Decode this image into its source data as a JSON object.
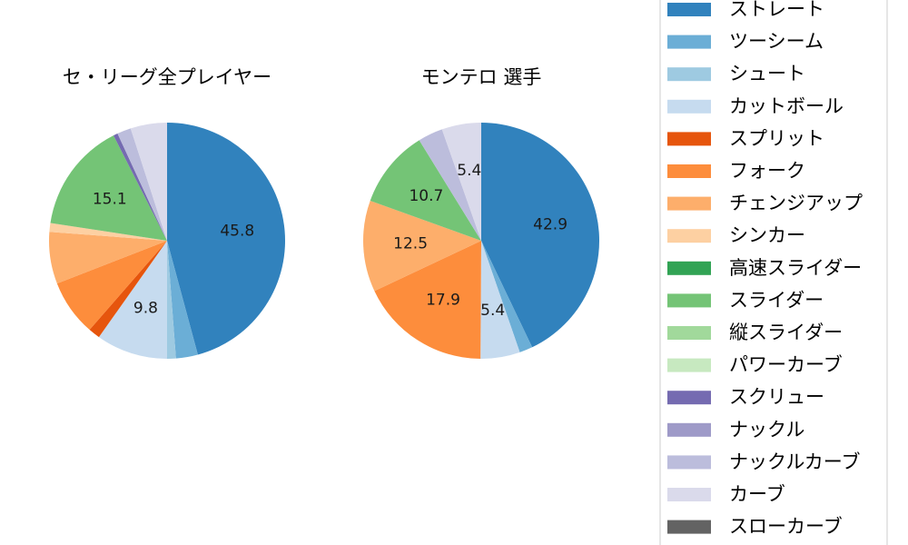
{
  "legend": {
    "items": [
      {
        "label": "ストレート",
        "color": "#3182bd"
      },
      {
        "label": "ツーシーム",
        "color": "#6baed6"
      },
      {
        "label": "シュート",
        "color": "#9ecae1"
      },
      {
        "label": "カットボール",
        "color": "#c6dbef"
      },
      {
        "label": "スプリット",
        "color": "#e6550d"
      },
      {
        "label": "フォーク",
        "color": "#fd8d3c"
      },
      {
        "label": "チェンジアップ",
        "color": "#fdae6b"
      },
      {
        "label": "シンカー",
        "color": "#fdd0a2"
      },
      {
        "label": "高速スライダー",
        "color": "#31a354"
      },
      {
        "label": "スライダー",
        "color": "#74c476"
      },
      {
        "label": "縦スライダー",
        "color": "#a1d99b"
      },
      {
        "label": "パワーカーブ",
        "color": "#c7e9c0"
      },
      {
        "label": "スクリュー",
        "color": "#756bb1"
      },
      {
        "label": "ナックル",
        "color": "#9e9ac8"
      },
      {
        "label": "ナックルカーブ",
        "color": "#bcbddc"
      },
      {
        "label": "カーブ",
        "color": "#dadaeb"
      },
      {
        "label": "スローカーブ",
        "color": "#636363"
      }
    ]
  },
  "chart_data": [
    {
      "type": "pie",
      "title": "セ・リーグ全プレイヤー",
      "start_angle": "12 o'clock",
      "direction": "clockwise",
      "slices": [
        {
          "category": "ストレート",
          "value": 45.8,
          "label": "45.8"
        },
        {
          "category": "ツーシーム",
          "value": 3.0,
          "label": ""
        },
        {
          "category": "シュート",
          "value": 1.2,
          "label": ""
        },
        {
          "category": "カットボール",
          "value": 9.8,
          "label": "9.8"
        },
        {
          "category": "スプリット",
          "value": 1.6,
          "label": ""
        },
        {
          "category": "フォーク",
          "value": 7.7,
          "label": ""
        },
        {
          "category": "チェンジアップ",
          "value": 7.1,
          "label": ""
        },
        {
          "category": "シンカー",
          "value": 1.2,
          "label": ""
        },
        {
          "category": "スライダー",
          "value": 15.1,
          "label": "15.1"
        },
        {
          "category": "スクリュー",
          "value": 0.6,
          "label": ""
        },
        {
          "category": "ナックルカーブ",
          "value": 1.9,
          "label": ""
        },
        {
          "category": "カーブ",
          "value": 5.0,
          "label": ""
        }
      ]
    },
    {
      "type": "pie",
      "title": "モンテロ  選手",
      "start_angle": "12 o'clock",
      "direction": "clockwise",
      "slices": [
        {
          "category": "ストレート",
          "value": 42.9,
          "label": "42.9"
        },
        {
          "category": "ツーシーム",
          "value": 1.8,
          "label": ""
        },
        {
          "category": "カットボール",
          "value": 5.4,
          "label": "5.4"
        },
        {
          "category": "フォーク",
          "value": 17.9,
          "label": "17.9"
        },
        {
          "category": "チェンジアップ",
          "value": 12.5,
          "label": "12.5"
        },
        {
          "category": "スライダー",
          "value": 10.7,
          "label": "10.7"
        },
        {
          "category": "ナックルカーブ",
          "value": 3.4,
          "label": ""
        },
        {
          "category": "カーブ",
          "value": 5.4,
          "label": "5.4"
        }
      ]
    }
  ]
}
